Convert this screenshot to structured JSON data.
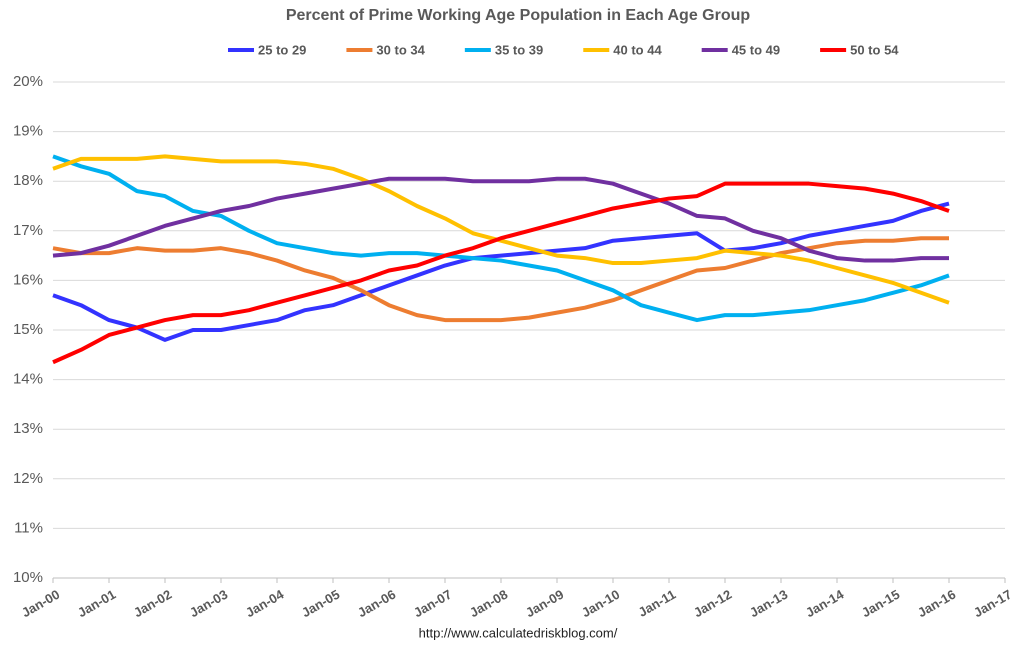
{
  "chart_data": {
    "type": "line",
    "title": "Percent of Prime Working Age Population in Each Age Group",
    "source": "http://www.calculatedriskblog.com/",
    "x": [
      2000,
      2000.5,
      2001,
      2001.5,
      2002,
      2002.5,
      2003,
      2003.5,
      2004,
      2004.5,
      2005,
      2005.5,
      2006,
      2006.5,
      2007,
      2007.5,
      2008,
      2008.5,
      2009,
      2009.5,
      2010,
      2010.5,
      2011,
      2011.5,
      2012,
      2012.5,
      2013,
      2013.5,
      2014,
      2014.5,
      2015,
      2015.5,
      2016
    ],
    "xlim": [
      2000,
      2017
    ],
    "xticks": [
      {
        "value": 2000,
        "label": "Jan-00"
      },
      {
        "value": 2001,
        "label": "Jan-01"
      },
      {
        "value": 2002,
        "label": "Jan-02"
      },
      {
        "value": 2003,
        "label": "Jan-03"
      },
      {
        "value": 2004,
        "label": "Jan-04"
      },
      {
        "value": 2005,
        "label": "Jan-05"
      },
      {
        "value": 2006,
        "label": "Jan-06"
      },
      {
        "value": 2007,
        "label": "Jan-07"
      },
      {
        "value": 2008,
        "label": "Jan-08"
      },
      {
        "value": 2009,
        "label": "Jan-09"
      },
      {
        "value": 2010,
        "label": "Jan-10"
      },
      {
        "value": 2011,
        "label": "Jan-11"
      },
      {
        "value": 2012,
        "label": "Jan-12"
      },
      {
        "value": 2013,
        "label": "Jan-13"
      },
      {
        "value": 2014,
        "label": "Jan-14"
      },
      {
        "value": 2015,
        "label": "Jan-15"
      },
      {
        "value": 2016,
        "label": "Jan-16"
      },
      {
        "value": 2017,
        "label": "Jan-17"
      }
    ],
    "ylim": [
      10,
      20
    ],
    "yticks": [
      {
        "value": 10,
        "label": "10%"
      },
      {
        "value": 11,
        "label": "11%"
      },
      {
        "value": 12,
        "label": "12%"
      },
      {
        "value": 13,
        "label": "13%"
      },
      {
        "value": 14,
        "label": "14%"
      },
      {
        "value": 15,
        "label": "15%"
      },
      {
        "value": 16,
        "label": "16%"
      },
      {
        "value": 17,
        "label": "17%"
      },
      {
        "value": 18,
        "label": "18%"
      },
      {
        "value": 19,
        "label": "19%"
      },
      {
        "value": 20,
        "label": "20%"
      }
    ],
    "grid": true,
    "legend": "top",
    "series": [
      {
        "name": "25 to 29",
        "color": "#3333ff",
        "values": [
          15.7,
          15.5,
          15.2,
          15.05,
          14.8,
          15.0,
          15.0,
          15.1,
          15.2,
          15.4,
          15.5,
          15.7,
          15.9,
          16.1,
          16.3,
          16.45,
          16.5,
          16.55,
          16.6,
          16.65,
          16.8,
          16.85,
          16.9,
          16.95,
          16.6,
          16.65,
          16.75,
          16.9,
          17.0,
          17.1,
          17.2,
          17.4,
          17.55
        ]
      },
      {
        "name": "30 to 34",
        "color": "#ed7d31",
        "values": [
          16.65,
          16.55,
          16.55,
          16.65,
          16.6,
          16.6,
          16.65,
          16.55,
          16.4,
          16.2,
          16.05,
          15.8,
          15.5,
          15.3,
          15.2,
          15.2,
          15.2,
          15.25,
          15.35,
          15.45,
          15.6,
          15.8,
          16.0,
          16.2,
          16.25,
          16.4,
          16.55,
          16.65,
          16.75,
          16.8,
          16.8,
          16.85,
          16.85
        ]
      },
      {
        "name": "35 to 39",
        "color": "#00b0f0",
        "values": [
          18.5,
          18.3,
          18.15,
          17.8,
          17.7,
          17.4,
          17.3,
          17.0,
          16.75,
          16.65,
          16.55,
          16.5,
          16.55,
          16.55,
          16.5,
          16.45,
          16.4,
          16.3,
          16.2,
          16.0,
          15.8,
          15.5,
          15.35,
          15.2,
          15.3,
          15.3,
          15.35,
          15.4,
          15.5,
          15.6,
          15.75,
          15.9,
          16.1
        ]
      },
      {
        "name": "40 to 44",
        "color": "#ffc000",
        "values": [
          18.25,
          18.45,
          18.45,
          18.45,
          18.5,
          18.45,
          18.4,
          18.4,
          18.4,
          18.35,
          18.25,
          18.05,
          17.8,
          17.5,
          17.25,
          16.95,
          16.8,
          16.65,
          16.5,
          16.45,
          16.35,
          16.35,
          16.4,
          16.45,
          16.6,
          16.55,
          16.5,
          16.4,
          16.25,
          16.1,
          15.95,
          15.75,
          15.55
        ]
      },
      {
        "name": "45 to 49",
        "color": "#7030a0",
        "values": [
          16.5,
          16.55,
          16.7,
          16.9,
          17.1,
          17.25,
          17.4,
          17.5,
          17.65,
          17.75,
          17.85,
          17.95,
          18.05,
          18.05,
          18.05,
          18.0,
          18.0,
          18.0,
          18.05,
          18.05,
          17.95,
          17.75,
          17.55,
          17.3,
          17.25,
          17.0,
          16.85,
          16.6,
          16.45,
          16.4,
          16.4,
          16.45,
          16.45
        ]
      },
      {
        "name": "50 to 54",
        "color": "#ff0000",
        "values": [
          14.35,
          14.6,
          14.9,
          15.05,
          15.2,
          15.3,
          15.3,
          15.4,
          15.55,
          15.7,
          15.85,
          16.0,
          16.2,
          16.3,
          16.5,
          16.65,
          16.85,
          17.0,
          17.15,
          17.3,
          17.45,
          17.55,
          17.65,
          17.7,
          17.95,
          17.95,
          17.95,
          17.95,
          17.9,
          17.85,
          17.75,
          17.6,
          17.4
        ]
      }
    ]
  }
}
